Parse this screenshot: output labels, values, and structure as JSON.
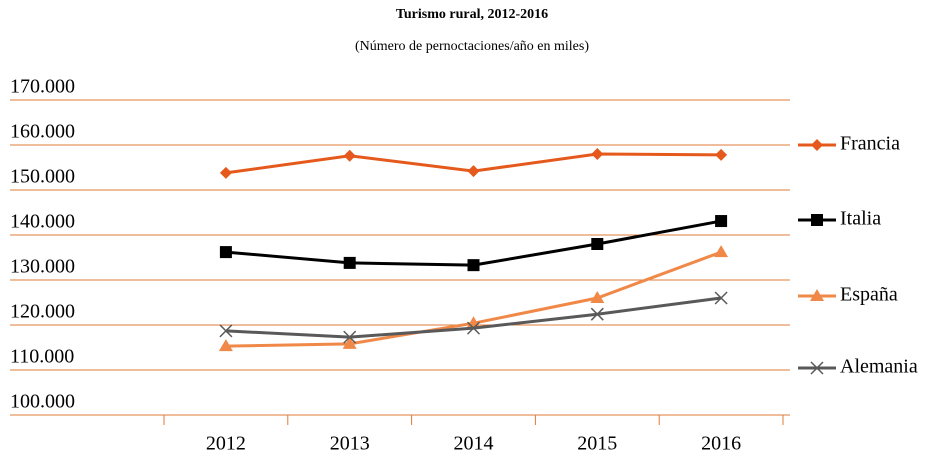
{
  "chart_data": {
    "type": "line",
    "title": "Turismo rural, 2012-2016",
    "subtitle": "(Número de pernoctaciones/año en miles)",
    "categories": [
      "2012",
      "2013",
      "2014",
      "2015",
      "2016"
    ],
    "series": [
      {
        "name": "Francia",
        "color": "#e55a1c",
        "marker": "diamond",
        "values": [
          153800,
          157600,
          154200,
          158000,
          157800
        ]
      },
      {
        "name": "Italia",
        "color": "#000000",
        "marker": "square",
        "values": [
          136200,
          133800,
          133300,
          138000,
          143100
        ]
      },
      {
        "name": "España",
        "color": "#f08848",
        "marker": "triangle",
        "values": [
          115300,
          115800,
          120400,
          126000,
          136200
        ]
      },
      {
        "name": "Alemania",
        "color": "#595959",
        "marker": "x",
        "values": [
          118700,
          117300,
          119300,
          122400,
          126000
        ]
      }
    ],
    "ylim": [
      100000,
      170000
    ],
    "yticks": [
      {
        "value": 100000,
        "label": "100.000"
      },
      {
        "value": 110000,
        "label": "110.000"
      },
      {
        "value": 120000,
        "label": "120.000"
      },
      {
        "value": 130000,
        "label": "130.000"
      },
      {
        "value": 140000,
        "label": "140.000"
      },
      {
        "value": 150000,
        "label": "150.000"
      },
      {
        "value": 160000,
        "label": "160.000"
      },
      {
        "value": 170000,
        "label": "170.000"
      }
    ],
    "grid": true,
    "grid_color": "#e07b39",
    "legend": "right"
  }
}
